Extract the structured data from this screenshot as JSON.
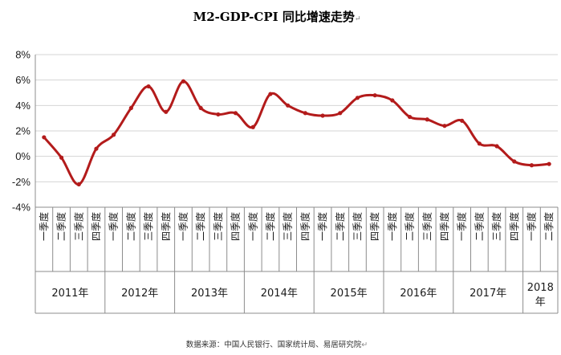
{
  "chart_data": {
    "type": "line",
    "title": "M2-GDP-CPI 同比增速走势",
    "title_mark": "↵",
    "source_note": "数据来源：中国人民银行、国家统计局、易居研究院",
    "source_mark": "↵",
    "ylim": [
      -4,
      8
    ],
    "y_ticks": [
      -4,
      -2,
      0,
      2,
      4,
      6,
      8
    ],
    "y_tick_labels": [
      "-4%",
      "-2%",
      "0%",
      "2%",
      "4%",
      "6%",
      "8%"
    ],
    "grid": true,
    "legend": "none",
    "line_color": "#b31b1b",
    "grid_color": "#d4d4d4",
    "axis_color": "#8c8c8c",
    "quarter_labels": [
      "一季度",
      "二季度",
      "三季度",
      "四季度"
    ],
    "years": [
      {
        "label": "2011年",
        "quarters": 4
      },
      {
        "label": "2012年",
        "quarters": 4
      },
      {
        "label": "2013年",
        "quarters": 4
      },
      {
        "label": "2014年",
        "quarters": 4
      },
      {
        "label": "2015年",
        "quarters": 4
      },
      {
        "label": "2016年",
        "quarters": 4
      },
      {
        "label": "2017年",
        "quarters": 4
      },
      {
        "label": "2018年",
        "quarters": 2
      }
    ],
    "series": [
      {
        "name": "M2-GDP-CPI",
        "values": [
          1.5,
          -0.1,
          -2.2,
          0.6,
          1.7,
          3.8,
          5.5,
          3.5,
          5.9,
          3.8,
          3.3,
          3.4,
          2.3,
          4.9,
          4.0,
          3.4,
          3.2,
          3.4,
          4.6,
          4.8,
          4.4,
          3.1,
          2.9,
          2.4,
          2.8,
          1.0,
          0.8,
          -0.4,
          -0.7,
          -0.6
        ]
      }
    ]
  }
}
